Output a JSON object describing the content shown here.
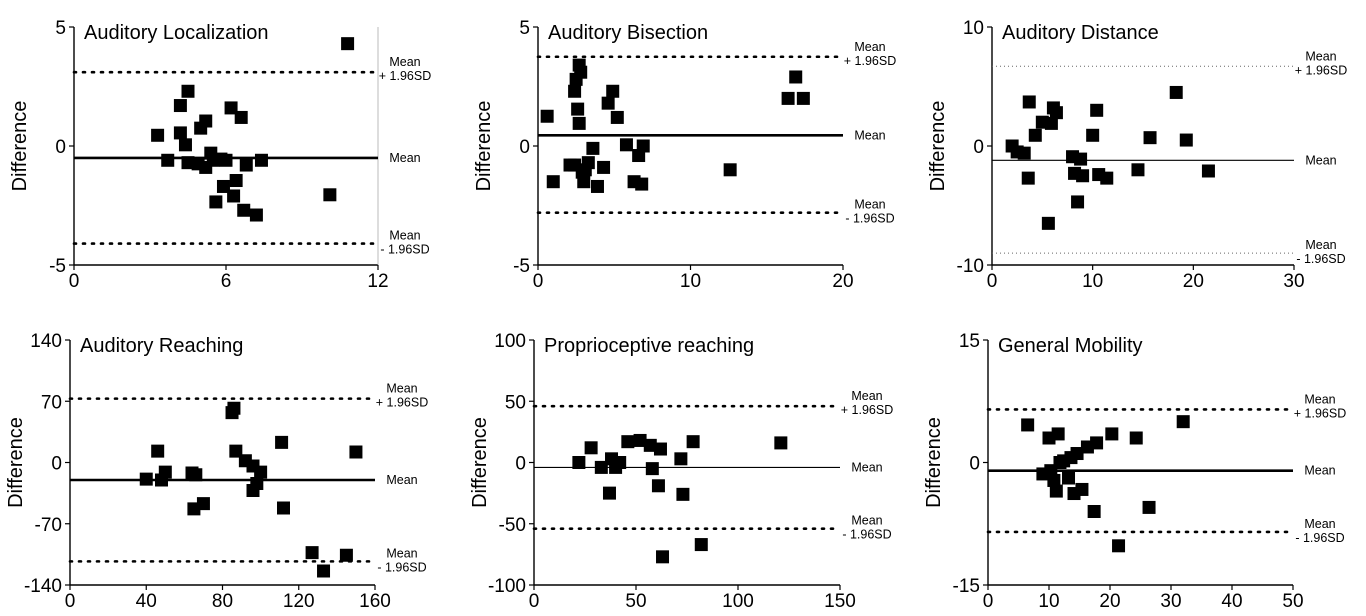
{
  "chart_data": [
    {
      "type": "scatter",
      "title": "Auditory Localization",
      "ylabel": "Difference",
      "xlabel": "",
      "xlim": [
        0,
        12
      ],
      "ylim": [
        -5,
        5
      ],
      "xticks": [
        0,
        6,
        12
      ],
      "yticks": [
        -5,
        0,
        5
      ],
      "xtick_labels": [
        "0",
        "6",
        "12"
      ],
      "ytick_labels": [
        "-5",
        "0",
        "5"
      ],
      "mean": -0.5,
      "upper": 3.1,
      "lower": -4.1,
      "mean_style": "thick",
      "labels": {
        "mean": "Mean",
        "upper": [
          "Mean",
          "+ 1.96SD"
        ],
        "lower": [
          "Mean",
          "- 1.96SD"
        ]
      },
      "points": [
        [
          3.3,
          0.45
        ],
        [
          3.7,
          -0.6
        ],
        [
          4.2,
          1.7
        ],
        [
          4.2,
          0.55
        ],
        [
          4.4,
          0.05
        ],
        [
          4.5,
          2.3
        ],
        [
          4.5,
          -0.7
        ],
        [
          4.9,
          -0.75
        ],
        [
          5.0,
          0.75
        ],
        [
          5.2,
          1.05
        ],
        [
          5.2,
          -0.9
        ],
        [
          5.4,
          -0.3
        ],
        [
          5.5,
          -0.6
        ],
        [
          5.6,
          -2.35
        ],
        [
          5.8,
          -0.55
        ],
        [
          5.9,
          -1.7
        ],
        [
          6.0,
          -0.6
        ],
        [
          6.2,
          1.6
        ],
        [
          6.3,
          -2.1
        ],
        [
          6.4,
          -1.45
        ],
        [
          6.6,
          1.2
        ],
        [
          6.7,
          -2.7
        ],
        [
          6.8,
          -0.8
        ],
        [
          7.2,
          -2.9
        ],
        [
          7.4,
          -0.6
        ],
        [
          10.1,
          -2.05
        ],
        [
          10.8,
          4.3
        ]
      ]
    },
    {
      "type": "scatter",
      "title": "Auditory Bisection",
      "ylabel": "Difference",
      "xlabel": "",
      "xlim": [
        0,
        20
      ],
      "ylim": [
        -5,
        5
      ],
      "xticks": [
        0,
        10,
        20
      ],
      "yticks": [
        -5,
        0,
        5
      ],
      "xtick_labels": [
        "0",
        "10",
        "20"
      ],
      "ytick_labels": [
        "-5",
        "0",
        "5"
      ],
      "mean": 0.45,
      "upper": 3.75,
      "lower": -2.8,
      "mean_style": "thick",
      "labels": {
        "mean": "Mean",
        "upper": [
          "Mean",
          "+ 1.96SD"
        ],
        "lower": [
          "Mean",
          "- 1.96SD"
        ]
      },
      "points": [
        [
          0.6,
          1.25
        ],
        [
          1.0,
          -1.5
        ],
        [
          2.1,
          -0.8
        ],
        [
          2.4,
          -0.8
        ],
        [
          2.4,
          2.3
        ],
        [
          2.5,
          2.8
        ],
        [
          2.6,
          1.55
        ],
        [
          2.7,
          0.95
        ],
        [
          2.7,
          3.4
        ],
        [
          2.8,
          3.1
        ],
        [
          2.9,
          -1.1
        ],
        [
          3.0,
          -1.5
        ],
        [
          3.1,
          -1.0
        ],
        [
          3.3,
          -0.7
        ],
        [
          3.6,
          -0.1
        ],
        [
          3.9,
          -1.7
        ],
        [
          4.3,
          -0.9
        ],
        [
          4.6,
          1.8
        ],
        [
          4.9,
          2.3
        ],
        [
          5.2,
          1.2
        ],
        [
          5.8,
          0.05
        ],
        [
          6.3,
          -1.5
        ],
        [
          6.6,
          -0.4
        ],
        [
          6.8,
          -1.6
        ],
        [
          6.9,
          0.0
        ],
        [
          12.6,
          -1.0
        ],
        [
          16.4,
          2.0
        ],
        [
          16.9,
          2.9
        ],
        [
          17.4,
          2.0
        ]
      ]
    },
    {
      "type": "scatter",
      "title": "Auditory Distance",
      "ylabel": "Difference",
      "xlabel": "",
      "xlim": [
        0,
        30
      ],
      "ylim": [
        -10,
        10
      ],
      "xticks": [
        0,
        10,
        20,
        30
      ],
      "yticks": [
        -10,
        0,
        10
      ],
      "xtick_labels": [
        "0",
        "10",
        "20",
        "30"
      ],
      "ytick_labels": [
        "-10",
        "0",
        "10"
      ],
      "mean": -1.2,
      "upper": 6.7,
      "lower": -9.0,
      "mean_style": "thin",
      "labels": {
        "mean": "Mean",
        "upper": [
          "Mean",
          "+ 1.96SD"
        ],
        "lower": [
          "Mean",
          "- 1.96SD"
        ]
      },
      "points": [
        [
          2.0,
          0.0
        ],
        [
          2.5,
          -0.5
        ],
        [
          3.2,
          -0.6
        ],
        [
          3.6,
          -2.7
        ],
        [
          3.7,
          3.7
        ],
        [
          4.3,
          0.9
        ],
        [
          5.0,
          2.0
        ],
        [
          5.6,
          -6.5
        ],
        [
          5.9,
          1.9
        ],
        [
          6.1,
          3.2
        ],
        [
          6.4,
          2.8
        ],
        [
          8.0,
          -0.9
        ],
        [
          8.2,
          -2.3
        ],
        [
          8.5,
          -4.7
        ],
        [
          8.8,
          -1.1
        ],
        [
          9.0,
          -2.5
        ],
        [
          10.0,
          0.9
        ],
        [
          10.4,
          3.0
        ],
        [
          10.6,
          -2.4
        ],
        [
          11.4,
          -2.7
        ],
        [
          14.5,
          -2.0
        ],
        [
          15.7,
          0.7
        ],
        [
          18.3,
          4.5
        ],
        [
          19.3,
          0.5
        ],
        [
          21.5,
          -2.1
        ]
      ]
    },
    {
      "type": "scatter",
      "title": "Auditory Reaching",
      "ylabel": "Difference",
      "xlabel": "",
      "xlim": [
        0,
        160
      ],
      "ylim": [
        -140,
        140
      ],
      "xticks": [
        0,
        40,
        80,
        120,
        160
      ],
      "yticks": [
        -140,
        -70,
        0,
        70,
        140
      ],
      "xtick_labels": [
        "0",
        "40",
        "80",
        "120",
        "160"
      ],
      "ytick_labels": [
        "-140",
        "-70",
        "0",
        "70",
        "140"
      ],
      "mean": -20,
      "upper": 73,
      "lower": -113,
      "mean_style": "thick",
      "labels": {
        "mean": "Mean",
        "upper": [
          "Mean",
          "+ 1.96SD"
        ],
        "lower": [
          "Mean",
          "- 1.96SD"
        ]
      },
      "points": [
        [
          40,
          -19
        ],
        [
          46,
          13
        ],
        [
          48,
          -20
        ],
        [
          50,
          -11
        ],
        [
          64,
          -12
        ],
        [
          65,
          -53
        ],
        [
          66,
          -14
        ],
        [
          70,
          -47
        ],
        [
          85,
          57
        ],
        [
          86,
          62
        ],
        [
          87,
          13
        ],
        [
          92,
          2
        ],
        [
          96,
          -4
        ],
        [
          96,
          -32
        ],
        [
          98,
          -24
        ],
        [
          100,
          -11
        ],
        [
          111,
          23
        ],
        [
          112,
          -52
        ],
        [
          127,
          -103
        ],
        [
          133,
          -124
        ],
        [
          145,
          -106
        ],
        [
          150,
          12
        ]
      ]
    },
    {
      "type": "scatter",
      "title": "Proprioceptive reaching",
      "ylabel": "Difference",
      "xlabel": "",
      "xlim": [
        0,
        150
      ],
      "ylim": [
        -100,
        100
      ],
      "xticks": [
        0,
        50,
        100,
        150
      ],
      "yticks": [
        -100,
        -50,
        0,
        50,
        100
      ],
      "xtick_labels": [
        "0",
        "50",
        "100",
        "150"
      ],
      "ytick_labels": [
        "-100",
        "-50",
        "0",
        "50",
        "100"
      ],
      "mean": -4,
      "upper": 46,
      "lower": -54,
      "mean_style": "thin",
      "labels": {
        "mean": "Mean",
        "upper": [
          "Mean",
          "+ 1.96SD"
        ],
        "lower": [
          "Mean",
          "- 1.96SD"
        ]
      },
      "points": [
        [
          22,
          0
        ],
        [
          28,
          12
        ],
        [
          33,
          -4
        ],
        [
          37,
          -25
        ],
        [
          38,
          3
        ],
        [
          40,
          -4
        ],
        [
          42,
          0
        ],
        [
          46,
          17
        ],
        [
          52,
          18
        ],
        [
          57,
          14
        ],
        [
          58,
          -5
        ],
        [
          61,
          -19
        ],
        [
          62,
          11
        ],
        [
          63,
          -77
        ],
        [
          72,
          3
        ],
        [
          73,
          -26
        ],
        [
          78,
          17
        ],
        [
          82,
          -67
        ],
        [
          121,
          16
        ]
      ]
    },
    {
      "type": "scatter",
      "title": "General Mobility",
      "ylabel": "Difference",
      "xlabel": "",
      "xlim": [
        0,
        50
      ],
      "ylim": [
        -15,
        15
      ],
      "xticks": [
        0,
        10,
        20,
        30,
        40,
        50
      ],
      "yticks": [
        -15,
        0,
        15
      ],
      "xtick_labels": [
        "0",
        "10",
        "20",
        "30",
        "40",
        "50"
      ],
      "ytick_labels": [
        "-15",
        "0",
        "15"
      ],
      "mean": -1,
      "upper": 6.5,
      "lower": -8.5,
      "mean_style": "thick",
      "labels": {
        "mean": "Mean",
        "upper": [
          "Mean",
          "+ 1.96SD"
        ],
        "lower": [
          "Mean",
          "- 1.96SD"
        ]
      },
      "points": [
        [
          6.5,
          4.6
        ],
        [
          9.0,
          -1.4
        ],
        [
          10.0,
          3.0
        ],
        [
          10.3,
          -1.0
        ],
        [
          10.8,
          -2.2
        ],
        [
          11.2,
          -3.5
        ],
        [
          11.5,
          3.5
        ],
        [
          11.8,
          0.0
        ],
        [
          12.4,
          0.2
        ],
        [
          13.2,
          -1.9
        ],
        [
          13.6,
          0.6
        ],
        [
          14.1,
          -3.8
        ],
        [
          14.6,
          1.1
        ],
        [
          15.4,
          -3.3
        ],
        [
          16.3,
          1.9
        ],
        [
          17.4,
          -6.0
        ],
        [
          17.8,
          2.4
        ],
        [
          20.3,
          3.5
        ],
        [
          21.4,
          -10.2
        ],
        [
          24.3,
          3.0
        ],
        [
          26.4,
          -5.5
        ],
        [
          32.0,
          5.0
        ]
      ]
    }
  ]
}
